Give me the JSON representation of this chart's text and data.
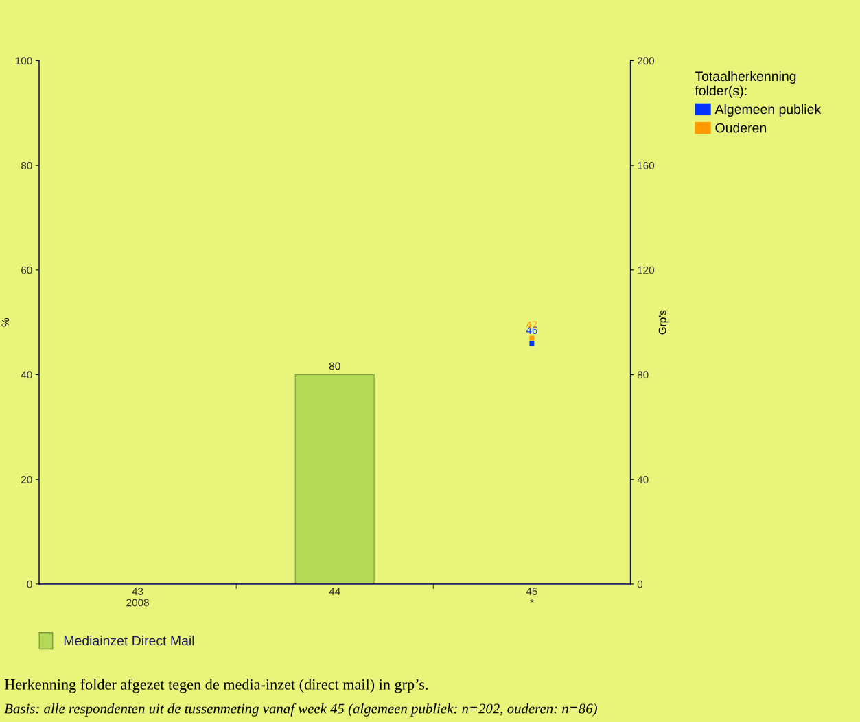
{
  "chart_data": {
    "type": "line",
    "categories": [
      "43\n2008",
      "44",
      "45\n*"
    ],
    "ylabel": "%",
    "y2label": "Grp's",
    "legend_title": "Totaalherkenning\nfolder(s):",
    "ylim": [
      0,
      100
    ],
    "yticks": [
      0,
      20,
      40,
      60,
      80,
      100
    ],
    "y2lim": [
      0,
      200
    ],
    "y2ticks": [
      0,
      40,
      80,
      120,
      160,
      200
    ],
    "series": [
      {
        "name": "Mediainzet Direct Mail",
        "type": "bar",
        "axis": "y2",
        "color": "#b3d957",
        "values": [
          null,
          80,
          null
        ],
        "value_labels": [
          null,
          "80",
          null
        ]
      },
      {
        "name": "Algemeen publiek",
        "color": "#0033ff",
        "values": [
          null,
          null,
          46
        ],
        "value_labels": [
          null,
          null,
          "46"
        ]
      },
      {
        "name": "Ouderen",
        "color": "#ff9900",
        "values": [
          null,
          null,
          47
        ],
        "value_labels": [
          null,
          null,
          "47"
        ]
      }
    ],
    "marker": "square",
    "grid": false,
    "legend": "right",
    "annotations": [
      "Herkenning folder afgezet tegen de media-inzet (direct mail) in grp’s.",
      "Basis: alle respondenten uit de tussenmeting vanaf week 45 (algemeen publiek: n=202, ouderen: n=86)"
    ]
  }
}
